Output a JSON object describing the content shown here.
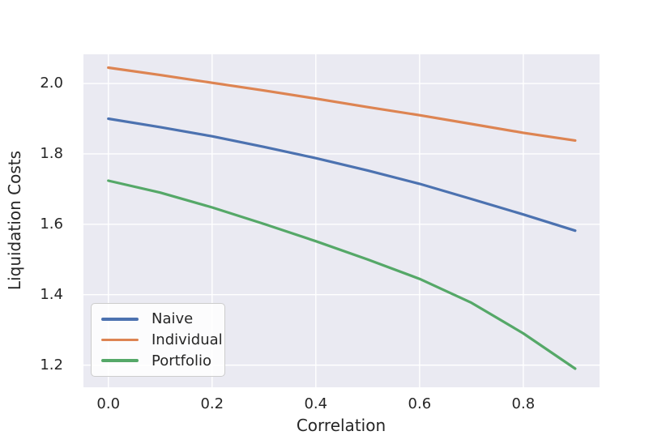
{
  "chart_data": {
    "type": "line",
    "title": "",
    "xlabel": "Correlation",
    "ylabel": "Liquidation Costs",
    "x": [
      0.0,
      0.1,
      0.2,
      0.3,
      0.4,
      0.5,
      0.6,
      0.7,
      0.8,
      0.9
    ],
    "series": [
      {
        "name": "Naive",
        "color": "#4C72B0",
        "values": [
          1.9,
          1.876,
          1.85,
          1.82,
          1.788,
          1.753,
          1.715,
          1.672,
          1.628,
          1.582
        ]
      },
      {
        "name": "Individual",
        "color": "#DD8452",
        "values": [
          2.045,
          2.024,
          2.002,
          1.98,
          1.957,
          1.933,
          1.91,
          1.885,
          1.86,
          1.838
        ]
      },
      {
        "name": "Portfolio",
        "color": "#55A868",
        "values": [
          1.724,
          1.69,
          1.648,
          1.601,
          1.552,
          1.5,
          1.445,
          1.377,
          1.29,
          1.19
        ]
      }
    ],
    "xticks": [
      0.0,
      0.2,
      0.4,
      0.6,
      0.8
    ],
    "xtick_labels": [
      "0.0",
      "0.2",
      "0.4",
      "0.6",
      "0.8"
    ],
    "yticks": [
      2.0,
      1.8,
      1.6,
      1.4,
      1.2
    ],
    "ytick_labels": [
      "2.0",
      "1.8",
      "1.6",
      "1.4",
      "1.2"
    ],
    "xlim": [
      -0.048,
      0.947
    ],
    "ylim": [
      1.137,
      2.083
    ],
    "grid": true,
    "grid_color": "#FFFFFF",
    "plot_bg": "#EAEAF2",
    "legend_position": "lower left"
  }
}
